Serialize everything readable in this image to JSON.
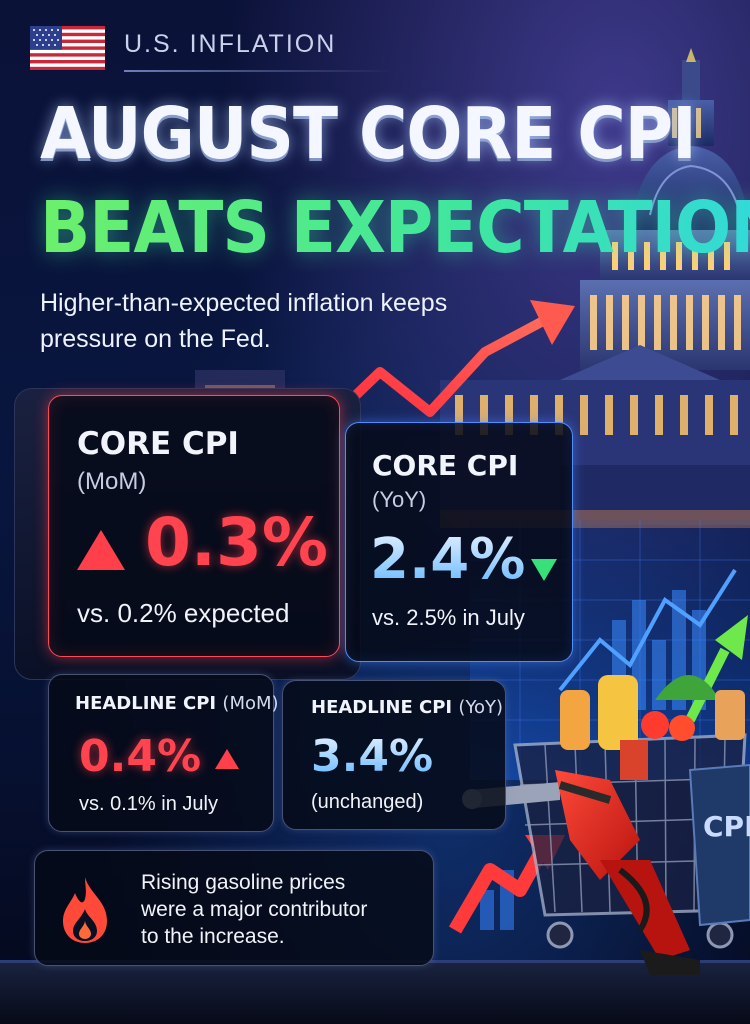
{
  "header": {
    "kicker": "U.S. INFLATION",
    "title_line1": "AUGUST CORE CPI",
    "title_line2": "BEATS EXPECTATIONS",
    "subtitle_line1": "Higher-than-expected inflation keeps",
    "subtitle_line2": "pressure on the Fed."
  },
  "cards": {
    "core_mom": {
      "label": "CORE CPI",
      "period": "(MoM)",
      "value": "0.3%",
      "comparison": "vs. 0.2% expected",
      "direction": "up"
    },
    "core_yoy": {
      "label": "CORE CPI",
      "period": "(YoY)",
      "value": "2.4%",
      "comparison": "vs. 2.5% in July",
      "direction": "down"
    },
    "headline_mom": {
      "label": "HEADLINE CPI",
      "period": "(MoM)",
      "value": "0.4%",
      "comparison": "vs. 0.1% in July",
      "direction": "up"
    },
    "headline_yoy": {
      "label": "HEADLINE CPI",
      "period": "(YoY)",
      "value": "3.4%",
      "comparison": "(unchanged)"
    }
  },
  "footnote": {
    "line1": "Rising gasoline prices",
    "line2": "were a major contributor",
    "line3": "to the increase.",
    "icon": "flame-icon"
  },
  "illustration": {
    "bag_label": "CPI"
  },
  "colors": {
    "accent_red": "#ff4450",
    "accent_green": "#3ee67a",
    "accent_blue": "#4f8dff",
    "background": "#08163f"
  }
}
